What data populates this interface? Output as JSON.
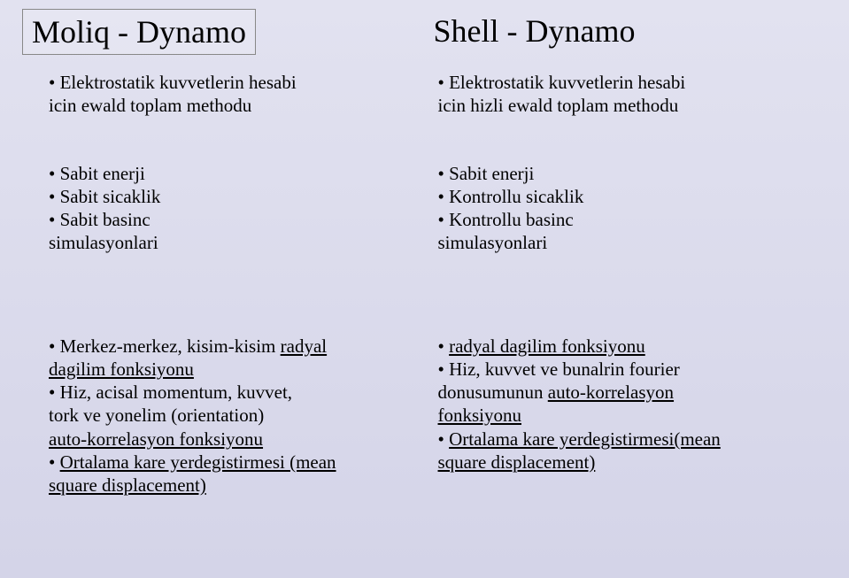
{
  "titles": {
    "left": "Moliq - Dynamo",
    "right": "Shell - Dynamo"
  },
  "left": {
    "b1_l1": "Elektrostatik kuvvetlerin hesabi",
    "b1_l2": "icin ewald toplam methodu",
    "b2_l1": "Sabit enerji",
    "b2_l2": "Sabit sicaklik",
    "b2_l3": "Sabit basinc",
    "b2_l4": "simulasyonlari",
    "b3_l1a": "Merkez-merkez, kisim-kisim ",
    "b3_l1b": "radyal ",
    "b3_l2": "dagilim fonksiyonu",
    "b3_l3": "Hiz, acisal momentum, kuvvet,",
    "b3_l4": "tork ve yonelim (orientation) ",
    "b3_l5": "auto-korrelasyon fonksiyonu",
    "b3_l6": "Ortalama kare yerdegistirmesi (mean",
    "b3_l7": " square displacement)"
  },
  "right": {
    "b1_l1": "Elektrostatik kuvvetlerin hesabi",
    "b1_l2": "icin hizli ewald toplam methodu",
    "b2_l1": "Sabit enerji",
    "b2_l2": "Kontrollu sicaklik",
    "b2_l3": "Kontrollu basinc",
    "b2_l4": "simulasyonlari",
    "b3_l1": "radyal dagilim fonksiyonu",
    "b3_l2": "Hiz, kuvvet ve bunalrin fourier",
    "b3_l3a": "donusumunun ",
    "b3_l3b": "auto-korrelasyon ",
    "b3_l4": "fonksiyonu",
    "b3_l5": "Ortalama kare yerdegistirmesi(mean",
    "b3_l6": " square displacement)"
  }
}
